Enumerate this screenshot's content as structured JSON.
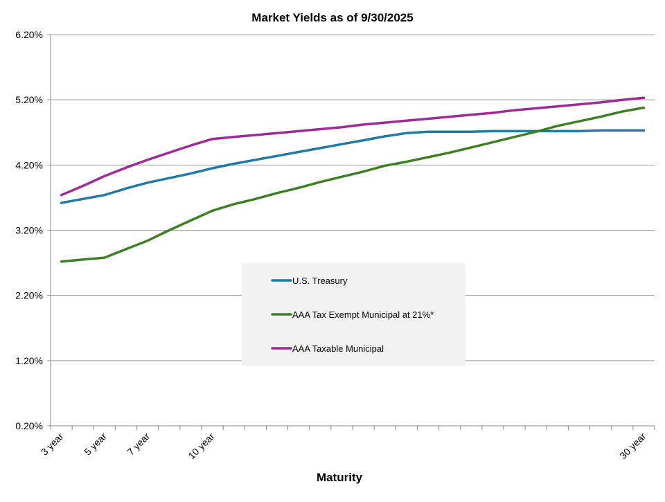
{
  "chart_data": {
    "type": "line",
    "title": "Market Yields as of 9/30/2025",
    "xlabel": "Maturity",
    "ylabel": "",
    "ylim": [
      0.2,
      6.2
    ],
    "yticks": [
      0.2,
      1.2,
      2.2,
      3.2,
      4.2,
      5.2,
      6.2
    ],
    "ytick_labels": [
      "0.20%",
      "1.20%",
      "2.20%",
      "3.20%",
      "4.20%",
      "5.20%",
      "6.20%"
    ],
    "grid": "horizontal",
    "legend_position": "center",
    "x": [
      3,
      4,
      5,
      6,
      7,
      8,
      9,
      10,
      11,
      12,
      13,
      14,
      15,
      16,
      17,
      18,
      19,
      20,
      21,
      22,
      23,
      24,
      25,
      26,
      27,
      28,
      29,
      30
    ],
    "x_tick_labels": [
      "3 year",
      "",
      "5 year",
      "",
      "7 year",
      "",
      "",
      "10 year",
      "",
      "",
      "",
      "",
      "",
      "",
      "",
      "",
      "",
      "",
      "",
      "",
      "",
      "",
      "",
      "",
      "",
      "",
      "",
      "30 year"
    ],
    "series": [
      {
        "name": "U.S. Treasury",
        "color": "#1f7ba3",
        "values": [
          3.62,
          3.68,
          3.74,
          3.84,
          3.93,
          4.0,
          4.07,
          4.15,
          4.22,
          4.28,
          4.34,
          4.4,
          4.46,
          4.52,
          4.58,
          4.64,
          4.69,
          4.71,
          4.71,
          4.71,
          4.72,
          4.72,
          4.72,
          4.72,
          4.72,
          4.73,
          4.73,
          4.73
        ]
      },
      {
        "name": "AAA Tax Exempt Municipal at 21%*",
        "color": "#3f7f24",
        "values": [
          2.72,
          2.75,
          2.78,
          2.91,
          3.04,
          3.2,
          3.35,
          3.5,
          3.6,
          3.68,
          3.77,
          3.85,
          3.94,
          4.02,
          4.1,
          4.19,
          4.25,
          4.32,
          4.39,
          4.47,
          4.55,
          4.63,
          4.71,
          4.8,
          4.87,
          4.94,
          5.02,
          5.08
        ]
      },
      {
        "name": "AAA Taxable Municipal",
        "color": "#9c2b96",
        "values": [
          3.74,
          3.88,
          4.03,
          4.16,
          4.28,
          4.39,
          4.5,
          4.6,
          4.63,
          4.66,
          4.69,
          4.72,
          4.75,
          4.78,
          4.82,
          4.85,
          4.88,
          4.91,
          4.94,
          4.97,
          5.0,
          5.04,
          5.07,
          5.1,
          5.13,
          5.16,
          5.2,
          5.23
        ]
      }
    ]
  }
}
